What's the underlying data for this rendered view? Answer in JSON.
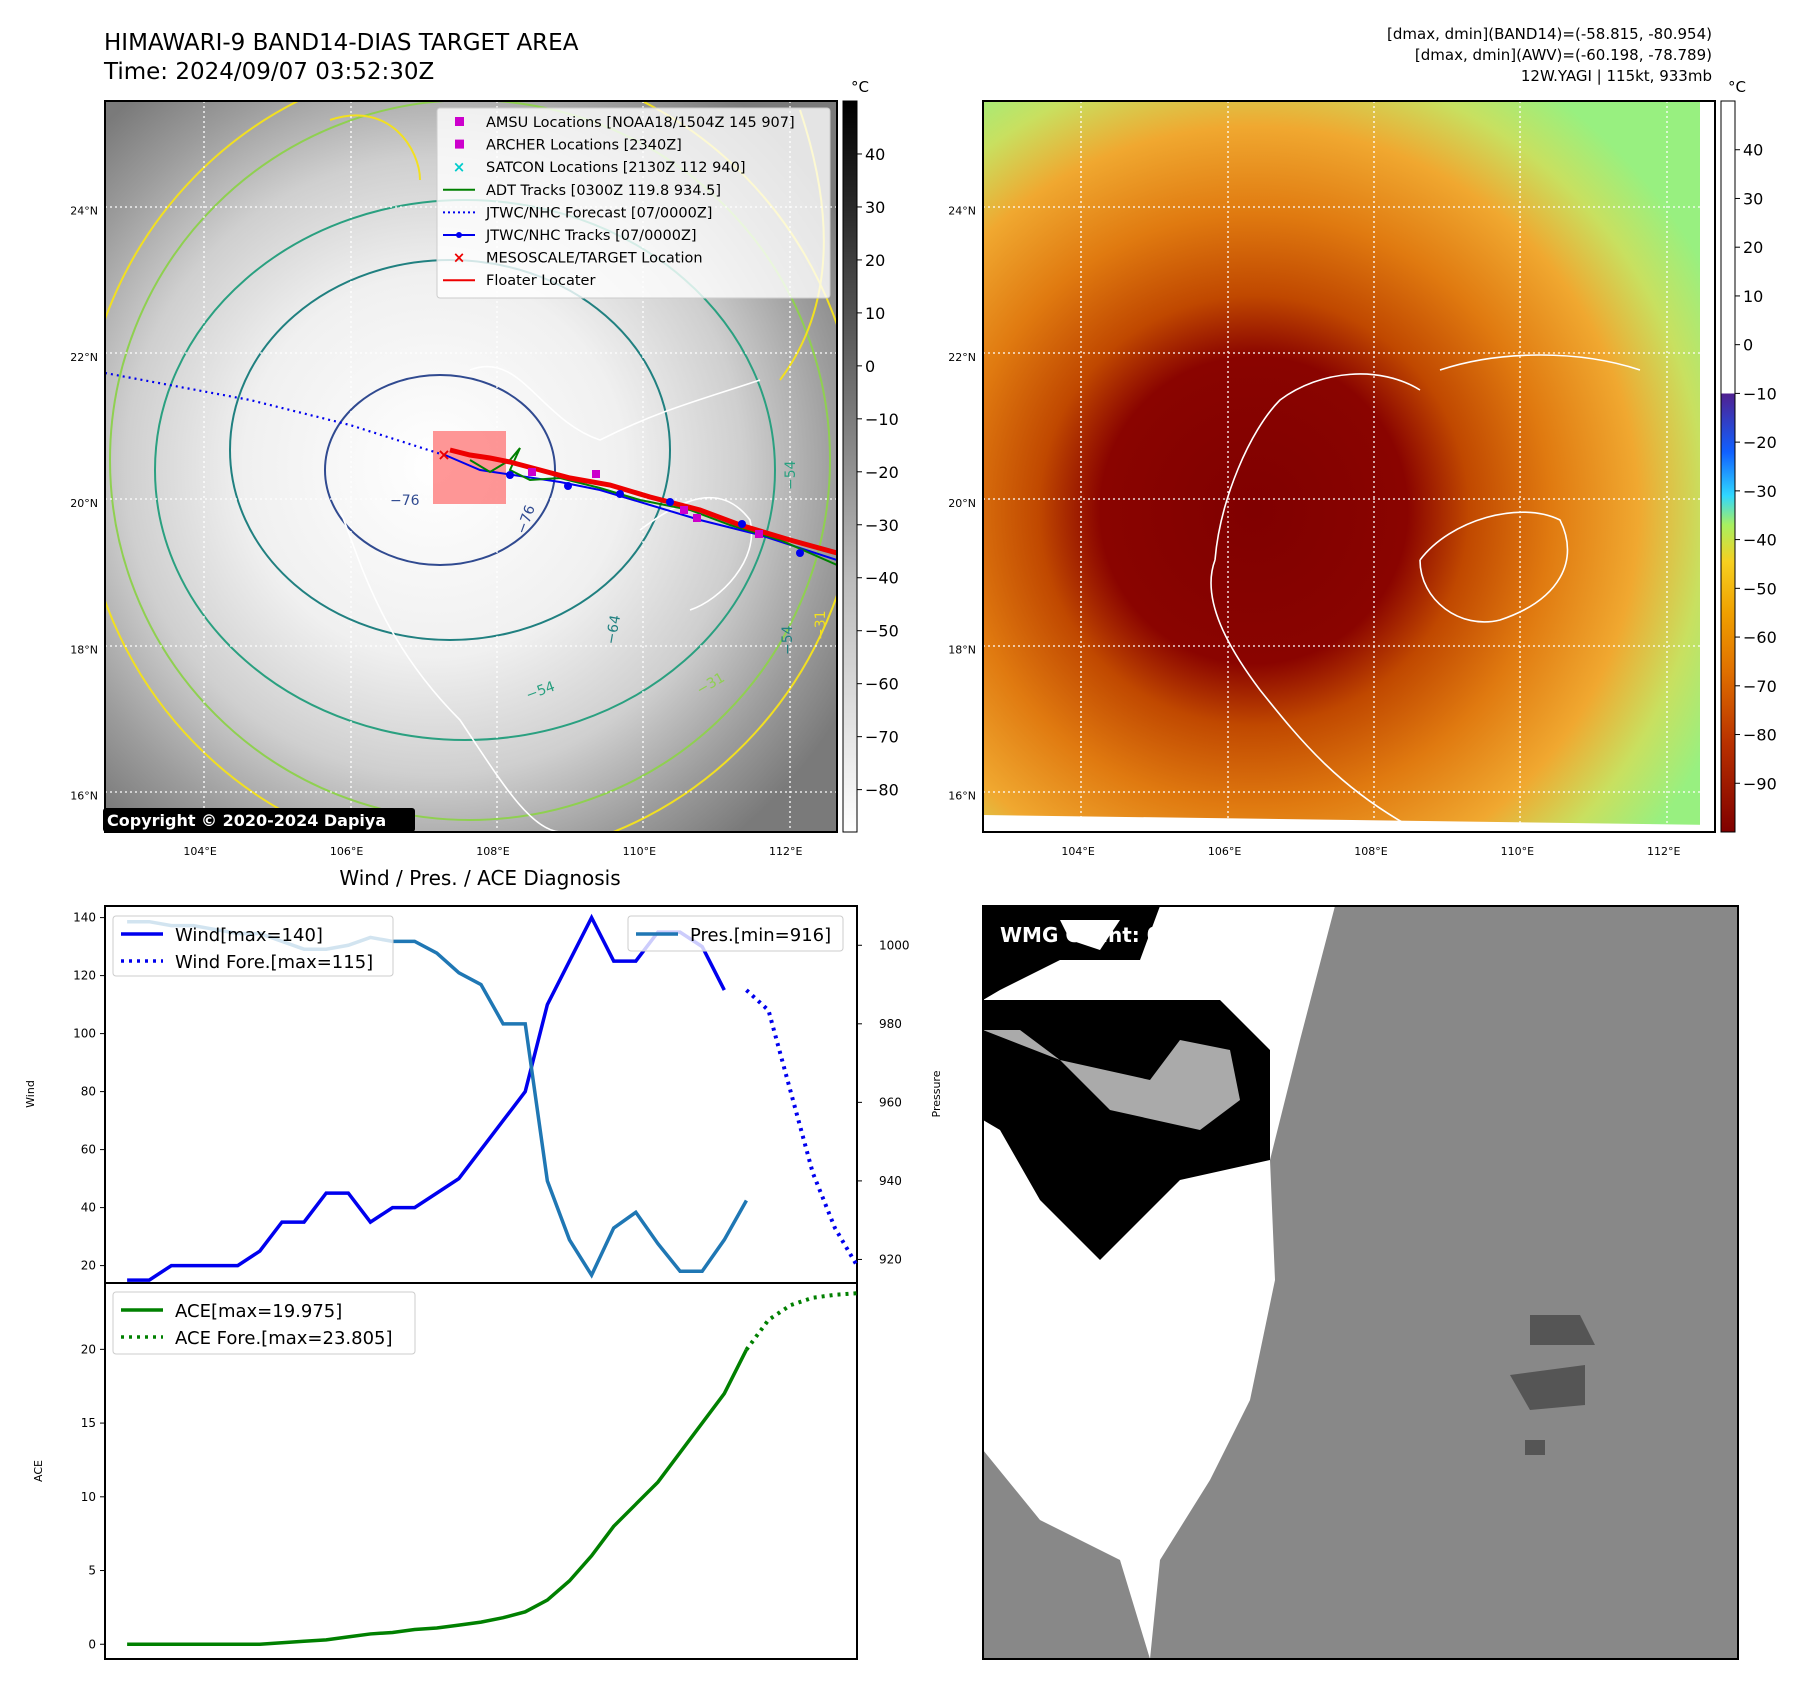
{
  "header": {
    "title": "HIMAWARI-9 BAND14-DIAS TARGET AREA",
    "time": "Time: 2024/09/07 03:52:30Z",
    "stats_band14": "[dmax, dmin](BAND14)=(-58.815, -80.954)",
    "stats_awv": "[dmax, dmin](AWV)=(-60.198, -78.789)",
    "storm": "12W.YAGI | 115kt, 933mb"
  },
  "map_axes": {
    "lon_labels": [
      "104°E",
      "106°E",
      "108°E",
      "110°E",
      "112°E"
    ],
    "lat_labels": [
      "24°N",
      "22°N",
      "20°N",
      "18°N",
      "16°N"
    ],
    "lon_range": [
      102.7,
      112.7
    ],
    "lat_range": [
      15.5,
      25.5
    ]
  },
  "left_colorbar": {
    "unit": "°C",
    "ticks": [
      "40",
      "30",
      "20",
      "10",
      "0",
      "−10",
      "−20",
      "−30",
      "−40",
      "−50",
      "−60",
      "−70",
      "−80"
    ],
    "range": [
      -88,
      50
    ]
  },
  "right_colorbar": {
    "unit": "°C",
    "ticks": [
      "40",
      "30",
      "20",
      "10",
      "0",
      "−10",
      "−20",
      "−30",
      "−40",
      "−50",
      "−60",
      "−70",
      "−80",
      "−90"
    ],
    "range": [
      -100,
      50
    ]
  },
  "legend": [
    {
      "label": "AMSU Locations [NOAA18/1504Z 145 907]",
      "marker": "square",
      "color": "#cc00cc"
    },
    {
      "label": "ARCHER Locations [2340Z]",
      "marker": "square",
      "color": "#cc00cc"
    },
    {
      "label": "SATCON Locations [2130Z 112 940]",
      "marker": "x",
      "color": "#00cccc"
    },
    {
      "label": "ADT Tracks [0300Z 119.8 934.5]",
      "marker": "line",
      "color": "#008000"
    },
    {
      "label": "JTWC/NHC Forecast [07/0000Z]",
      "marker": "dotted",
      "color": "#0000ee"
    },
    {
      "label": "JTWC/NHC Tracks [07/0000Z]",
      "marker": "line-dot",
      "color": "#0000ee"
    },
    {
      "label": "MESOSCALE/TARGET Location",
      "marker": "x",
      "color": "#ee0000"
    },
    {
      "label": "Floater Locater",
      "marker": "line",
      "color": "#ee0000"
    }
  ],
  "contour_labels": [
    "−76",
    "−76",
    "−64",
    "−54",
    "−31",
    "−54",
    "−54",
    "−31"
  ],
  "copyright": "Copyright © 2020-2024 Dapiya",
  "wmg_label": "WMG Count: 0",
  "chart_data": [
    {
      "type": "line",
      "title": "Wind / Pres. / ACE Diagnosis",
      "ylabel": "Wind",
      "ylabel_right": "Pressure",
      "ylim": [
        14,
        144
      ],
      "ylim_right": [
        914,
        1010
      ],
      "xlim": [
        0,
        34
      ],
      "yticks": [
        20,
        40,
        60,
        80,
        100,
        120,
        140
      ],
      "yticks_right": [
        920,
        940,
        960,
        980,
        1000
      ],
      "series": [
        {
          "name": "Wind[max=140]",
          "axis": "left",
          "style": "solid",
          "color": "#0000ee",
          "x": [
            1,
            2,
            3,
            4,
            5,
            6,
            7,
            8,
            9,
            10,
            11,
            12,
            13,
            14,
            15,
            16,
            17,
            18,
            19,
            20,
            21,
            22,
            23,
            24,
            25,
            26,
            27,
            28
          ],
          "values": [
            15,
            15,
            20,
            20,
            20,
            20,
            25,
            35,
            35,
            45,
            45,
            35,
            40,
            40,
            45,
            50,
            60,
            70,
            80,
            110,
            125,
            140,
            125,
            125,
            135,
            135,
            130,
            115
          ]
        },
        {
          "name": "Wind Fore.[max=115]",
          "axis": "left",
          "style": "dotted",
          "color": "#0000ee",
          "x": [
            29,
            30,
            31,
            32,
            33,
            34
          ],
          "values": [
            115,
            108,
            80,
            52,
            33,
            20
          ]
        },
        {
          "name": "Pres.[min=916]",
          "axis": "right",
          "style": "solid",
          "color": "#1f77b4",
          "x": [
            1,
            2,
            3,
            4,
            5,
            6,
            7,
            8,
            9,
            10,
            11,
            12,
            13,
            14,
            15,
            16,
            17,
            18,
            19,
            20,
            21,
            22,
            23,
            24,
            25,
            26,
            27,
            28,
            29
          ],
          "values": [
            1006,
            1006,
            1005,
            1005,
            1004,
            1003,
            1003,
            1001,
            999,
            999,
            1000,
            1002,
            1001,
            1001,
            998,
            993,
            990,
            980,
            980,
            940,
            925,
            916,
            928,
            932,
            924,
            917,
            917,
            925,
            935
          ]
        }
      ]
    },
    {
      "type": "line",
      "ylabel": "ACE",
      "ylim": [
        -1,
        24.5
      ],
      "xlim": [
        0,
        34
      ],
      "yticks": [
        0,
        5,
        10,
        15,
        20
      ],
      "series": [
        {
          "name": "ACE[max=19.975]",
          "style": "solid",
          "color": "#008000",
          "x": [
            1,
            2,
            3,
            4,
            5,
            6,
            7,
            8,
            9,
            10,
            11,
            12,
            13,
            14,
            15,
            16,
            17,
            18,
            19,
            20,
            21,
            22,
            23,
            24,
            25,
            26,
            27,
            28,
            29
          ],
          "values": [
            0,
            0,
            0,
            0,
            0,
            0,
            0,
            0.1,
            0.2,
            0.3,
            0.5,
            0.7,
            0.8,
            1,
            1.1,
            1.3,
            1.5,
            1.8,
            2.2,
            3,
            4.3,
            6,
            8,
            9.5,
            11,
            13,
            15,
            17,
            19.975
          ]
        },
        {
          "name": "ACE Fore.[max=23.805]",
          "style": "dotted",
          "color": "#008000",
          "x": [
            29,
            30,
            31,
            32,
            33,
            34
          ],
          "values": [
            19.975,
            22,
            23,
            23.5,
            23.7,
            23.805
          ]
        }
      ]
    }
  ]
}
